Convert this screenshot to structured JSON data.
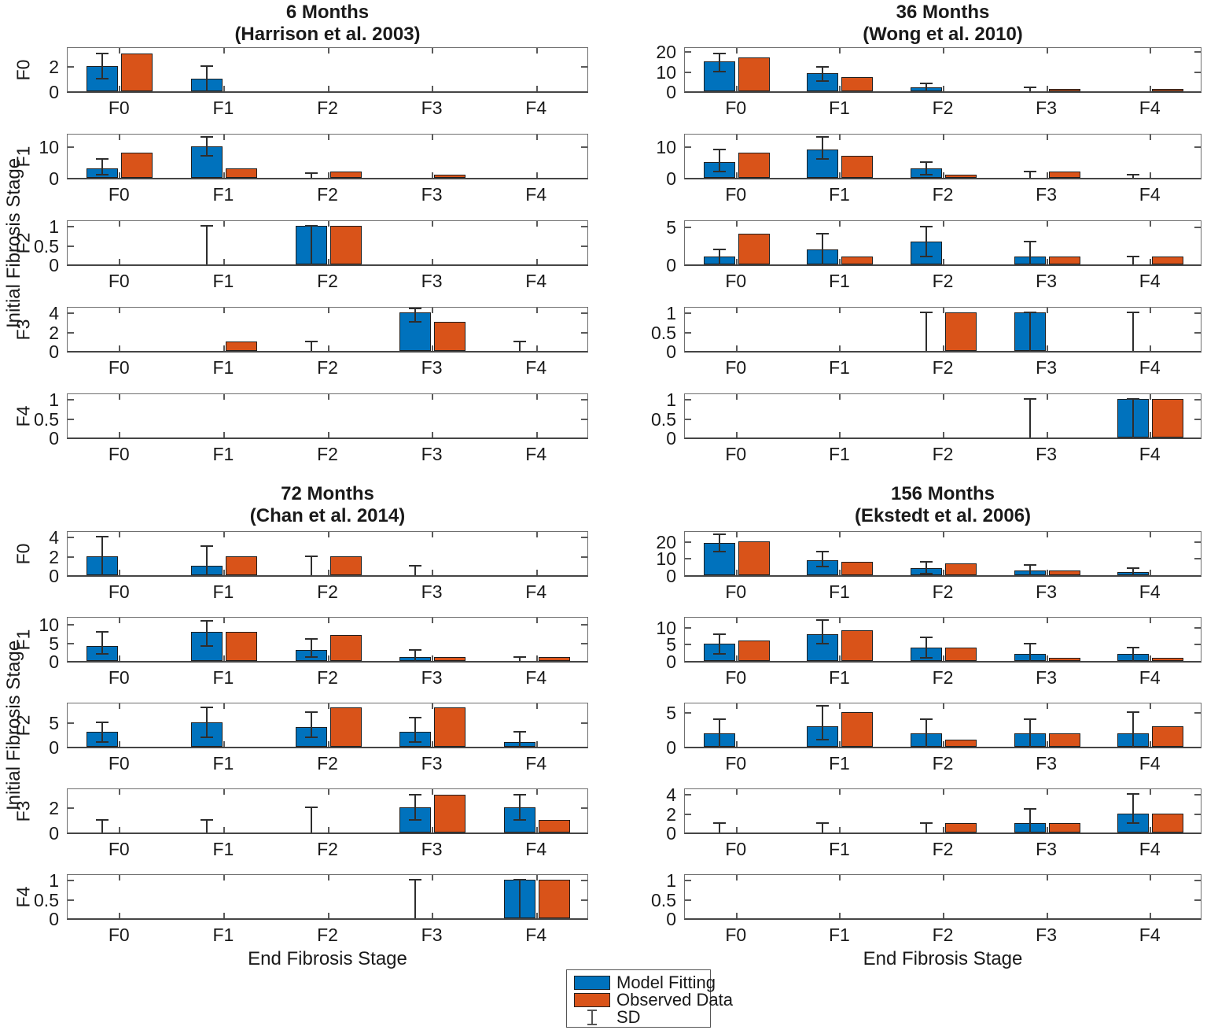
{
  "axes": {
    "ylabel": "Initial Fibrosis Stage",
    "xlabel": "End Fibrosis Stage"
  },
  "colors": {
    "model": "#0072BD",
    "observed": "#D95319",
    "sd": "#2e2e2e"
  },
  "legend": {
    "items": [
      {
        "key": "model",
        "label": "Model Fitting"
      },
      {
        "key": "observed",
        "label": "Observed Data"
      },
      {
        "key": "sd",
        "label": "SD"
      }
    ]
  },
  "chart_data": [
    {
      "type": "bar",
      "title": "6 Months",
      "subtitle": "(Harrison et al. 2003)",
      "grid_position": "top-left",
      "categories": [
        "F0",
        "F1",
        "F2",
        "F3",
        "F4"
      ],
      "series_names": [
        "Model Fitting",
        "Observed Data"
      ],
      "rows": [
        {
          "row_label": "F0",
          "ylim": [
            0,
            3.5
          ],
          "yticks": [
            0,
            2
          ],
          "cells": [
            {
              "model": 2,
              "sd": [
                1,
                3
              ],
              "obs": 3
            },
            {
              "model": 1,
              "sd": [
                0,
                2
              ],
              "obs": null
            },
            null,
            null,
            null
          ]
        },
        {
          "row_label": "F1",
          "ylim": [
            0,
            14
          ],
          "yticks": [
            0,
            10
          ],
          "cells": [
            {
              "model": 3,
              "sd": [
                1,
                6
              ],
              "obs": 8
            },
            {
              "model": 10,
              "sd": [
                7,
                13
              ],
              "obs": 3
            },
            {
              "model": null,
              "sd": [
                0,
                1.5
              ],
              "obs": 2
            },
            {
              "model": null,
              "sd": null,
              "obs": 1
            },
            null
          ]
        },
        {
          "row_label": "F2",
          "ylim": [
            0,
            1.15
          ],
          "yticks": [
            0,
            0.5,
            1
          ],
          "cells": [
            null,
            {
              "model": null,
              "sd": [
                0,
                1
              ],
              "obs": null
            },
            {
              "model": 1,
              "sd": [
                0,
                1
              ],
              "obs": 1
            },
            null,
            null
          ]
        },
        {
          "row_label": "F3",
          "ylim": [
            0,
            4.6
          ],
          "yticks": [
            0,
            2,
            4
          ],
          "cells": [
            null,
            {
              "model": null,
              "sd": null,
              "obs": 1
            },
            {
              "model": null,
              "sd": [
                0,
                1
              ],
              "obs": null
            },
            {
              "model": 4,
              "sd": [
                3,
                4.4
              ],
              "obs": 3
            },
            {
              "model": null,
              "sd": [
                0,
                1
              ],
              "obs": null
            }
          ]
        },
        {
          "row_label": "F4",
          "ylim": [
            0,
            1.15
          ],
          "yticks": [
            0,
            0.5,
            1
          ],
          "cells": [
            null,
            null,
            null,
            null,
            null
          ]
        }
      ]
    },
    {
      "type": "bar",
      "title": "36 Months",
      "subtitle": "(Wong et al. 2010)",
      "grid_position": "top-right",
      "categories": [
        "F0",
        "F1",
        "F2",
        "F3",
        "F4"
      ],
      "series_names": [
        "Model Fitting",
        "Observed Data"
      ],
      "rows": [
        {
          "row_label": "F0",
          "ylim": [
            0,
            22
          ],
          "yticks": [
            0,
            10,
            20
          ],
          "cells": [
            {
              "model": 15,
              "sd": [
                10,
                19
              ],
              "obs": 17
            },
            {
              "model": 9,
              "sd": [
                5,
                12
              ],
              "obs": 7
            },
            {
              "model": 2,
              "sd": [
                0,
                4
              ],
              "obs": null
            },
            {
              "model": null,
              "sd": [
                0,
                2
              ],
              "obs": 1
            },
            {
              "model": null,
              "sd": null,
              "obs": 1
            }
          ]
        },
        {
          "row_label": "F1",
          "ylim": [
            0,
            14
          ],
          "yticks": [
            0,
            10
          ],
          "cells": [
            {
              "model": 5,
              "sd": [
                2,
                9
              ],
              "obs": 8
            },
            {
              "model": 9,
              "sd": [
                6,
                13
              ],
              "obs": 7
            },
            {
              "model": 3,
              "sd": [
                1,
                5
              ],
              "obs": 1
            },
            {
              "model": null,
              "sd": [
                0,
                2
              ],
              "obs": 2
            },
            {
              "model": null,
              "sd": [
                0,
                1
              ],
              "obs": null
            }
          ]
        },
        {
          "row_label": "F2",
          "ylim": [
            0,
            5.8
          ],
          "yticks": [
            0,
            5
          ],
          "cells": [
            {
              "model": 1,
              "sd": [
                0,
                2
              ],
              "obs": 4
            },
            {
              "model": 2,
              "sd": [
                0,
                4
              ],
              "obs": 1
            },
            {
              "model": 3,
              "sd": [
                1,
                5
              ],
              "obs": null
            },
            {
              "model": 1,
              "sd": [
                0,
                3
              ],
              "obs": 1
            },
            {
              "model": null,
              "sd": [
                0,
                1
              ],
              "obs": 1
            }
          ]
        },
        {
          "row_label": "F3",
          "ylim": [
            0,
            1.15
          ],
          "yticks": [
            0,
            0.5,
            1
          ],
          "cells": [
            null,
            null,
            {
              "model": null,
              "sd": [
                0,
                1
              ],
              "obs": 1
            },
            {
              "model": 1,
              "sd": [
                0,
                1
              ],
              "obs": null
            },
            {
              "model": null,
              "sd": [
                0,
                1
              ],
              "obs": null
            }
          ]
        },
        {
          "row_label": "F4",
          "ylim": [
            0,
            1.15
          ],
          "yticks": [
            0,
            0.5,
            1
          ],
          "cells": [
            null,
            null,
            null,
            {
              "model": null,
              "sd": [
                0,
                1
              ],
              "obs": null
            },
            {
              "model": 1,
              "sd": [
                0,
                1
              ],
              "obs": 1
            }
          ]
        }
      ]
    },
    {
      "type": "bar",
      "title": "72 Months",
      "subtitle": "(Chan et al. 2014)",
      "grid_position": "bottom-left",
      "categories": [
        "F0",
        "F1",
        "F2",
        "F3",
        "F4"
      ],
      "series_names": [
        "Model Fitting",
        "Observed Data"
      ],
      "rows": [
        {
          "row_label": "F0",
          "ylim": [
            0,
            4.6
          ],
          "yticks": [
            0,
            2,
            4
          ],
          "cells": [
            {
              "model": 2,
              "sd": [
                0,
                4
              ],
              "obs": null
            },
            {
              "model": 1,
              "sd": [
                0,
                3
              ],
              "obs": 2
            },
            {
              "model": null,
              "sd": [
                0,
                2
              ],
              "obs": 2
            },
            {
              "model": null,
              "sd": [
                0,
                1
              ],
              "obs": null
            },
            null
          ]
        },
        {
          "row_label": "F1",
          "ylim": [
            0,
            12
          ],
          "yticks": [
            0,
            5,
            10
          ],
          "cells": [
            {
              "model": 4,
              "sd": [
                2,
                8
              ],
              "obs": null
            },
            {
              "model": 8,
              "sd": [
                4,
                11
              ],
              "obs": 8
            },
            {
              "model": 3,
              "sd": [
                1,
                6
              ],
              "obs": 7
            },
            {
              "model": 1,
              "sd": [
                0,
                3
              ],
              "obs": 1
            },
            {
              "model": null,
              "sd": [
                0,
                1
              ],
              "obs": 1
            }
          ]
        },
        {
          "row_label": "F2",
          "ylim": [
            0,
            9
          ],
          "yticks": [
            0,
            5
          ],
          "cells": [
            {
              "model": 3,
              "sd": [
                1,
                5
              ],
              "obs": null
            },
            {
              "model": 5,
              "sd": [
                2,
                8
              ],
              "obs": null
            },
            {
              "model": 4,
              "sd": [
                2,
                7
              ],
              "obs": 8
            },
            {
              "model": 3,
              "sd": [
                1,
                6
              ],
              "obs": 8
            },
            {
              "model": 1,
              "sd": [
                0,
                3
              ],
              "obs": null
            }
          ]
        },
        {
          "row_label": "F3",
          "ylim": [
            0,
            3.5
          ],
          "yticks": [
            0,
            2
          ],
          "cells": [
            {
              "model": null,
              "sd": [
                0,
                1
              ],
              "obs": null
            },
            {
              "model": null,
              "sd": [
                0,
                1
              ],
              "obs": null
            },
            {
              "model": null,
              "sd": [
                0,
                2
              ],
              "obs": null
            },
            {
              "model": 2,
              "sd": [
                1,
                3
              ],
              "obs": 3
            },
            {
              "model": 2,
              "sd": [
                1,
                3
              ],
              "obs": 1
            }
          ]
        },
        {
          "row_label": "F4",
          "ylim": [
            0,
            1.15
          ],
          "yticks": [
            0,
            0.5,
            1
          ],
          "cells": [
            null,
            null,
            null,
            {
              "model": null,
              "sd": [
                0,
                1
              ],
              "obs": null
            },
            {
              "model": 1,
              "sd": [
                0,
                1
              ],
              "obs": 1
            }
          ]
        }
      ]
    },
    {
      "type": "bar",
      "title": "156 Months",
      "subtitle": "(Ekstedt et al. 2006)",
      "grid_position": "bottom-right",
      "categories": [
        "F0",
        "F1",
        "F2",
        "F3",
        "F4"
      ],
      "series_names": [
        "Model Fitting",
        "Observed Data"
      ],
      "rows": [
        {
          "row_label": "F0",
          "ylim": [
            0,
            26
          ],
          "yticks": [
            0,
            10,
            20
          ],
          "cells": [
            {
              "model": 19,
              "sd": [
                14,
                24
              ],
              "obs": 20
            },
            {
              "model": 9,
              "sd": [
                5,
                14
              ],
              "obs": 8
            },
            {
              "model": 4,
              "sd": [
                1,
                8
              ],
              "obs": 7
            },
            {
              "model": 3,
              "sd": [
                0,
                6
              ],
              "obs": 3
            },
            {
              "model": 2,
              "sd": [
                0,
                4
              ],
              "obs": null
            }
          ]
        },
        {
          "row_label": "F1",
          "ylim": [
            0,
            13
          ],
          "yticks": [
            0,
            5,
            10
          ],
          "cells": [
            {
              "model": 5,
              "sd": [
                2,
                8
              ],
              "obs": 6
            },
            {
              "model": 8,
              "sd": [
                5,
                12
              ],
              "obs": 9
            },
            {
              "model": 4,
              "sd": [
                1,
                7
              ],
              "obs": 4
            },
            {
              "model": 2,
              "sd": [
                0,
                5
              ],
              "obs": 1
            },
            {
              "model": 2,
              "sd": [
                0,
                4
              ],
              "obs": 1
            }
          ]
        },
        {
          "row_label": "F2",
          "ylim": [
            0,
            6.4
          ],
          "yticks": [
            0,
            5
          ],
          "cells": [
            {
              "model": 2,
              "sd": [
                0,
                4
              ],
              "obs": null
            },
            {
              "model": 3,
              "sd": [
                1,
                6
              ],
              "obs": 5
            },
            {
              "model": 2,
              "sd": [
                0,
                4
              ],
              "obs": 1
            },
            {
              "model": 2,
              "sd": [
                0,
                4
              ],
              "obs": 2
            },
            {
              "model": 2,
              "sd": [
                0,
                5
              ],
              "obs": 3
            }
          ]
        },
        {
          "row_label": "F3",
          "ylim": [
            0,
            4.6
          ],
          "yticks": [
            0,
            2,
            4
          ],
          "cells": [
            {
              "model": null,
              "sd": [
                0,
                1
              ],
              "obs": null
            },
            {
              "model": null,
              "sd": [
                0,
                1
              ],
              "obs": null
            },
            {
              "model": null,
              "sd": [
                0,
                1
              ],
              "obs": 1
            },
            {
              "model": 1,
              "sd": [
                0,
                2.5
              ],
              "obs": 1
            },
            {
              "model": 2,
              "sd": [
                1,
                4
              ],
              "obs": 2
            }
          ]
        },
        {
          "row_label": "F4",
          "ylim": [
            0,
            1.15
          ],
          "yticks": [
            0,
            0.5,
            1
          ],
          "cells": [
            null,
            null,
            null,
            null,
            null
          ]
        }
      ]
    }
  ]
}
